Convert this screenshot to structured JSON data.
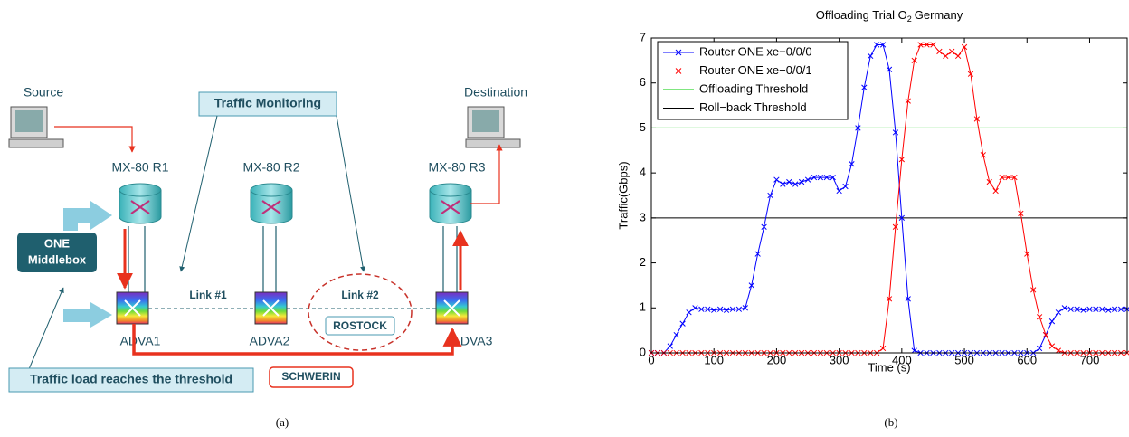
{
  "diagram": {
    "source": "Source",
    "destination": "Destination",
    "monitoring": "Traffic Monitoring",
    "routers": [
      "MX-80 R1",
      "MX-80 R2",
      "MX-80 R3"
    ],
    "switches": [
      "ADVA1",
      "ADVA2",
      "ADVA3"
    ],
    "middlebox": [
      "ONE",
      "Middlebox"
    ],
    "links": [
      "Link #1",
      "Link #2"
    ],
    "rostock": "ROSTOCK",
    "schwerin": "SCHWERIN",
    "threshold_note": "Traffic load reaches the threshold",
    "caption": "(a)"
  },
  "chart_data": {
    "type": "line",
    "title": [
      "Offloading Trial O",
      "2",
      "Germany"
    ],
    "x_label": "Time (s)",
    "y_label": "Traffic(Gbps)",
    "caption": "(b)",
    "xlim": [
      0,
      760
    ],
    "xticks": [
      0,
      100,
      200,
      300,
      400,
      500,
      600,
      700
    ],
    "ylim": [
      0,
      7
    ],
    "yticks": [
      0,
      1,
      2,
      3,
      4,
      5,
      6,
      7
    ],
    "legend": "upper left",
    "x": [
      0,
      10,
      20,
      30,
      40,
      50,
      60,
      70,
      80,
      90,
      100,
      110,
      120,
      130,
      140,
      150,
      160,
      170,
      180,
      190,
      200,
      210,
      220,
      230,
      240,
      250,
      260,
      270,
      280,
      290,
      300,
      310,
      320,
      330,
      340,
      350,
      360,
      370,
      380,
      390,
      400,
      410,
      420,
      430,
      440,
      450,
      460,
      470,
      480,
      490,
      500,
      510,
      520,
      530,
      540,
      550,
      560,
      570,
      580,
      590,
      600,
      610,
      620,
      630,
      640,
      650,
      660,
      670,
      680,
      690,
      700,
      710,
      720,
      730,
      740,
      750,
      760
    ],
    "series": [
      {
        "name": "Router ONE xe−0/0/0",
        "color": "#0000ff",
        "values": [
          0,
          0,
          0,
          0.15,
          0.4,
          0.65,
          0.9,
          1.0,
          0.97,
          0.97,
          0.95,
          0.97,
          0.95,
          0.97,
          0.97,
          1.0,
          1.5,
          2.2,
          2.8,
          3.5,
          3.85,
          3.75,
          3.8,
          3.75,
          3.8,
          3.85,
          3.9,
          3.9,
          3.9,
          3.9,
          3.6,
          3.7,
          4.2,
          5.0,
          5.9,
          6.6,
          6.85,
          6.85,
          6.3,
          4.9,
          3.0,
          1.2,
          0.05,
          0,
          0,
          0,
          0,
          0,
          0,
          0,
          0,
          0,
          0,
          0,
          0,
          0,
          0,
          0,
          0,
          0,
          0,
          0,
          0.1,
          0.4,
          0.7,
          0.9,
          1.0,
          0.97,
          0.97,
          0.95,
          0.97,
          0.97,
          0.97,
          0.95,
          0.97,
          0.97,
          0.97
        ]
      },
      {
        "name": "Router ONE xe−0/0/1",
        "color": "#ff0000",
        "values": [
          0,
          0,
          0,
          0,
          0,
          0,
          0,
          0,
          0,
          0,
          0,
          0,
          0,
          0,
          0,
          0,
          0,
          0,
          0,
          0,
          0,
          0,
          0,
          0,
          0,
          0,
          0,
          0,
          0,
          0,
          0,
          0,
          0,
          0,
          0,
          0,
          0,
          0.1,
          1.2,
          2.8,
          4.3,
          5.6,
          6.5,
          6.85,
          6.85,
          6.85,
          6.7,
          6.6,
          6.7,
          6.6,
          6.8,
          6.2,
          5.2,
          4.4,
          3.8,
          3.6,
          3.9,
          3.9,
          3.9,
          3.1,
          2.2,
          1.4,
          0.8,
          0.4,
          0.15,
          0.05,
          0,
          0,
          0,
          0,
          0,
          0,
          0,
          0,
          0,
          0,
          0
        ]
      }
    ],
    "hlines": [
      {
        "name": "Offloading Threshold",
        "color": "#00cc00",
        "value": 5
      },
      {
        "name": "Roll−back Threshold",
        "color": "#000000",
        "value": 3
      }
    ]
  }
}
